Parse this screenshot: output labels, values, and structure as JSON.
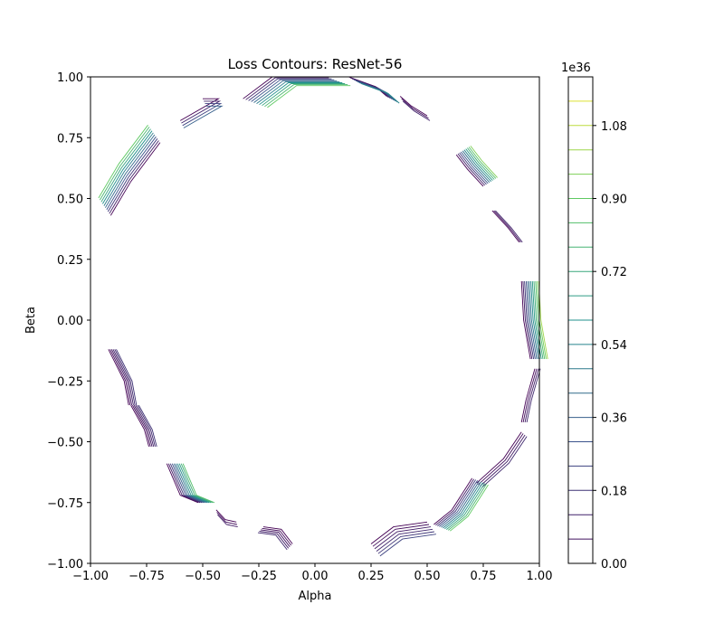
{
  "chart_data": {
    "type": "contour",
    "title": "Loss Contours: ResNet-56",
    "xlabel": "Alpha",
    "ylabel": "Beta",
    "xlim": [
      -1.0,
      1.0
    ],
    "ylim": [
      -1.0,
      1.0
    ],
    "xticks": [
      "−1.00",
      "−0.75",
      "−0.50",
      "−0.25",
      "0.00",
      "0.25",
      "0.50",
      "0.75",
      "1.00"
    ],
    "yticks": [
      "−1.00",
      "−0.75",
      "−0.50",
      "−0.25",
      "0.00",
      "0.25",
      "0.50",
      "0.75",
      "1.00"
    ],
    "xtick_values": [
      -1.0,
      -0.75,
      -0.5,
      -0.25,
      0.0,
      0.25,
      0.5,
      0.75,
      1.0
    ],
    "ytick_values": [
      -1.0,
      -0.75,
      -0.5,
      -0.25,
      0.0,
      0.25,
      0.5,
      0.75,
      1.0
    ],
    "colorbar": {
      "offset_label": "1e36",
      "ticks": [
        "0.00",
        "0.18",
        "0.36",
        "0.54",
        "0.72",
        "0.90",
        "1.08"
      ],
      "tick_values": [
        0.0,
        0.18,
        0.36,
        0.54,
        0.72,
        0.9,
        1.08
      ],
      "range": [
        0.0,
        1.2
      ],
      "level_count": 20,
      "colormap": [
        "#440154",
        "#3b528b",
        "#21918c",
        "#5ec962",
        "#fde725"
      ]
    },
    "contour_groups": [
      {
        "name": "top-left-upper",
        "x0": -0.5,
        "y0": 0.91,
        "x1": -0.43,
        "y1": 0.91,
        "x2": -0.6,
        "y2": 0.82,
        "n": 4,
        "dx": 0.005,
        "dy": -0.01,
        "max_level": 0.3
      },
      {
        "name": "top-peak",
        "x0": -0.32,
        "y0": 0.91,
        "x1": -0.19,
        "y1": 1.0,
        "x2": 0.05,
        "y2": 1.0,
        "n": 10,
        "dx": 0.012,
        "dy": -0.004,
        "max_level": 0.75
      },
      {
        "name": "top-right-upper",
        "x0": 0.15,
        "y0": 1.0,
        "x1": 0.27,
        "y1": 0.96,
        "x2": 0.32,
        "y2": 0.92,
        "n": 8,
        "dx": 0.008,
        "dy": -0.004,
        "max_level": 0.45
      },
      {
        "name": "top-right-small",
        "x0": 0.38,
        "y0": 0.92,
        "x1": 0.43,
        "y1": 0.88,
        "x2": 0.5,
        "y2": 0.84,
        "n": 3,
        "dx": 0.006,
        "dy": -0.01,
        "max_level": 0.1
      },
      {
        "name": "upper-left",
        "x0": -0.69,
        "y0": 0.73,
        "x1": -0.82,
        "y1": 0.57,
        "x2": -0.91,
        "y2": 0.43,
        "n": 10,
        "dx": -0.006,
        "dy": 0.008,
        "max_level": 0.75
      },
      {
        "name": "upper-right",
        "x0": 0.63,
        "y0": 0.68,
        "x1": 0.68,
        "y1": 0.62,
        "x2": 0.75,
        "y2": 0.55,
        "n": 10,
        "dx": 0.007,
        "dy": 0.004,
        "max_level": 0.8
      },
      {
        "name": "right-upper-small",
        "x0": 0.79,
        "y0": 0.45,
        "x1": 0.86,
        "y1": 0.38,
        "x2": 0.91,
        "y2": 0.32,
        "n": 3,
        "dx": 0.007,
        "dy": 0.0,
        "max_level": 0.1
      },
      {
        "name": "right-peak",
        "x0": 0.92,
        "y0": 0.16,
        "x1": 0.93,
        "y1": 0.0,
        "x2": 0.96,
        "y2": -0.16,
        "n": 12,
        "dx": 0.007,
        "dy": 0.0,
        "max_level": 0.85
      },
      {
        "name": "right-lower",
        "x0": 0.98,
        "y0": -0.2,
        "x1": 0.94,
        "y1": -0.33,
        "x2": 0.92,
        "y2": -0.42,
        "n": 4,
        "dx": 0.008,
        "dy": 0.0,
        "max_level": 0.12
      },
      {
        "name": "right-lower-2",
        "x0": 0.92,
        "y0": -0.46,
        "x1": 0.84,
        "y1": -0.57,
        "x2": 0.72,
        "y2": -0.67,
        "n": 4,
        "dx": 0.008,
        "dy": -0.006,
        "max_level": 0.12
      },
      {
        "name": "bottom-right-peak",
        "x0": 0.7,
        "y0": -0.65,
        "x1": 0.61,
        "y1": -0.78,
        "x2": 0.53,
        "y2": -0.84,
        "n": 10,
        "dx": 0.008,
        "dy": -0.003,
        "max_level": 0.75
      },
      {
        "name": "bottom-right-low",
        "x0": 0.25,
        "y0": -0.92,
        "x1": 0.35,
        "y1": -0.85,
        "x2": 0.5,
        "y2": -0.83,
        "n": 6,
        "dx": 0.008,
        "dy": -0.01,
        "max_level": 0.2
      },
      {
        "name": "bottom-center",
        "x0": -0.23,
        "y0": -0.85,
        "x1": -0.15,
        "y1": -0.86,
        "x2": -0.1,
        "y2": -0.92,
        "n": 5,
        "dx": -0.006,
        "dy": -0.006,
        "max_level": 0.12
      },
      {
        "name": "bottom-left-small",
        "x0": -0.44,
        "y0": -0.78,
        "x1": -0.4,
        "y1": -0.82,
        "x2": -0.35,
        "y2": -0.83,
        "n": 3,
        "dx": 0.003,
        "dy": -0.01,
        "max_level": 0.08
      },
      {
        "name": "lower-left-peak",
        "x0": -0.66,
        "y0": -0.59,
        "x1": -0.6,
        "y1": -0.72,
        "x2": -0.52,
        "y2": -0.75,
        "n": 10,
        "dx": 0.008,
        "dy": 0.0,
        "max_level": 0.7
      },
      {
        "name": "left-lower",
        "x0": -0.92,
        "y0": -0.12,
        "x1": -0.85,
        "y1": -0.25,
        "x2": -0.83,
        "y2": -0.35,
        "n": 6,
        "dx": 0.007,
        "dy": 0.0,
        "max_level": 0.15
      },
      {
        "name": "left-lower-2",
        "x0": -0.82,
        "y0": -0.35,
        "x1": -0.76,
        "y1": -0.45,
        "x2": -0.74,
        "y2": -0.52,
        "n": 6,
        "dx": 0.007,
        "dy": 0.0,
        "max_level": 0.15
      }
    ]
  }
}
